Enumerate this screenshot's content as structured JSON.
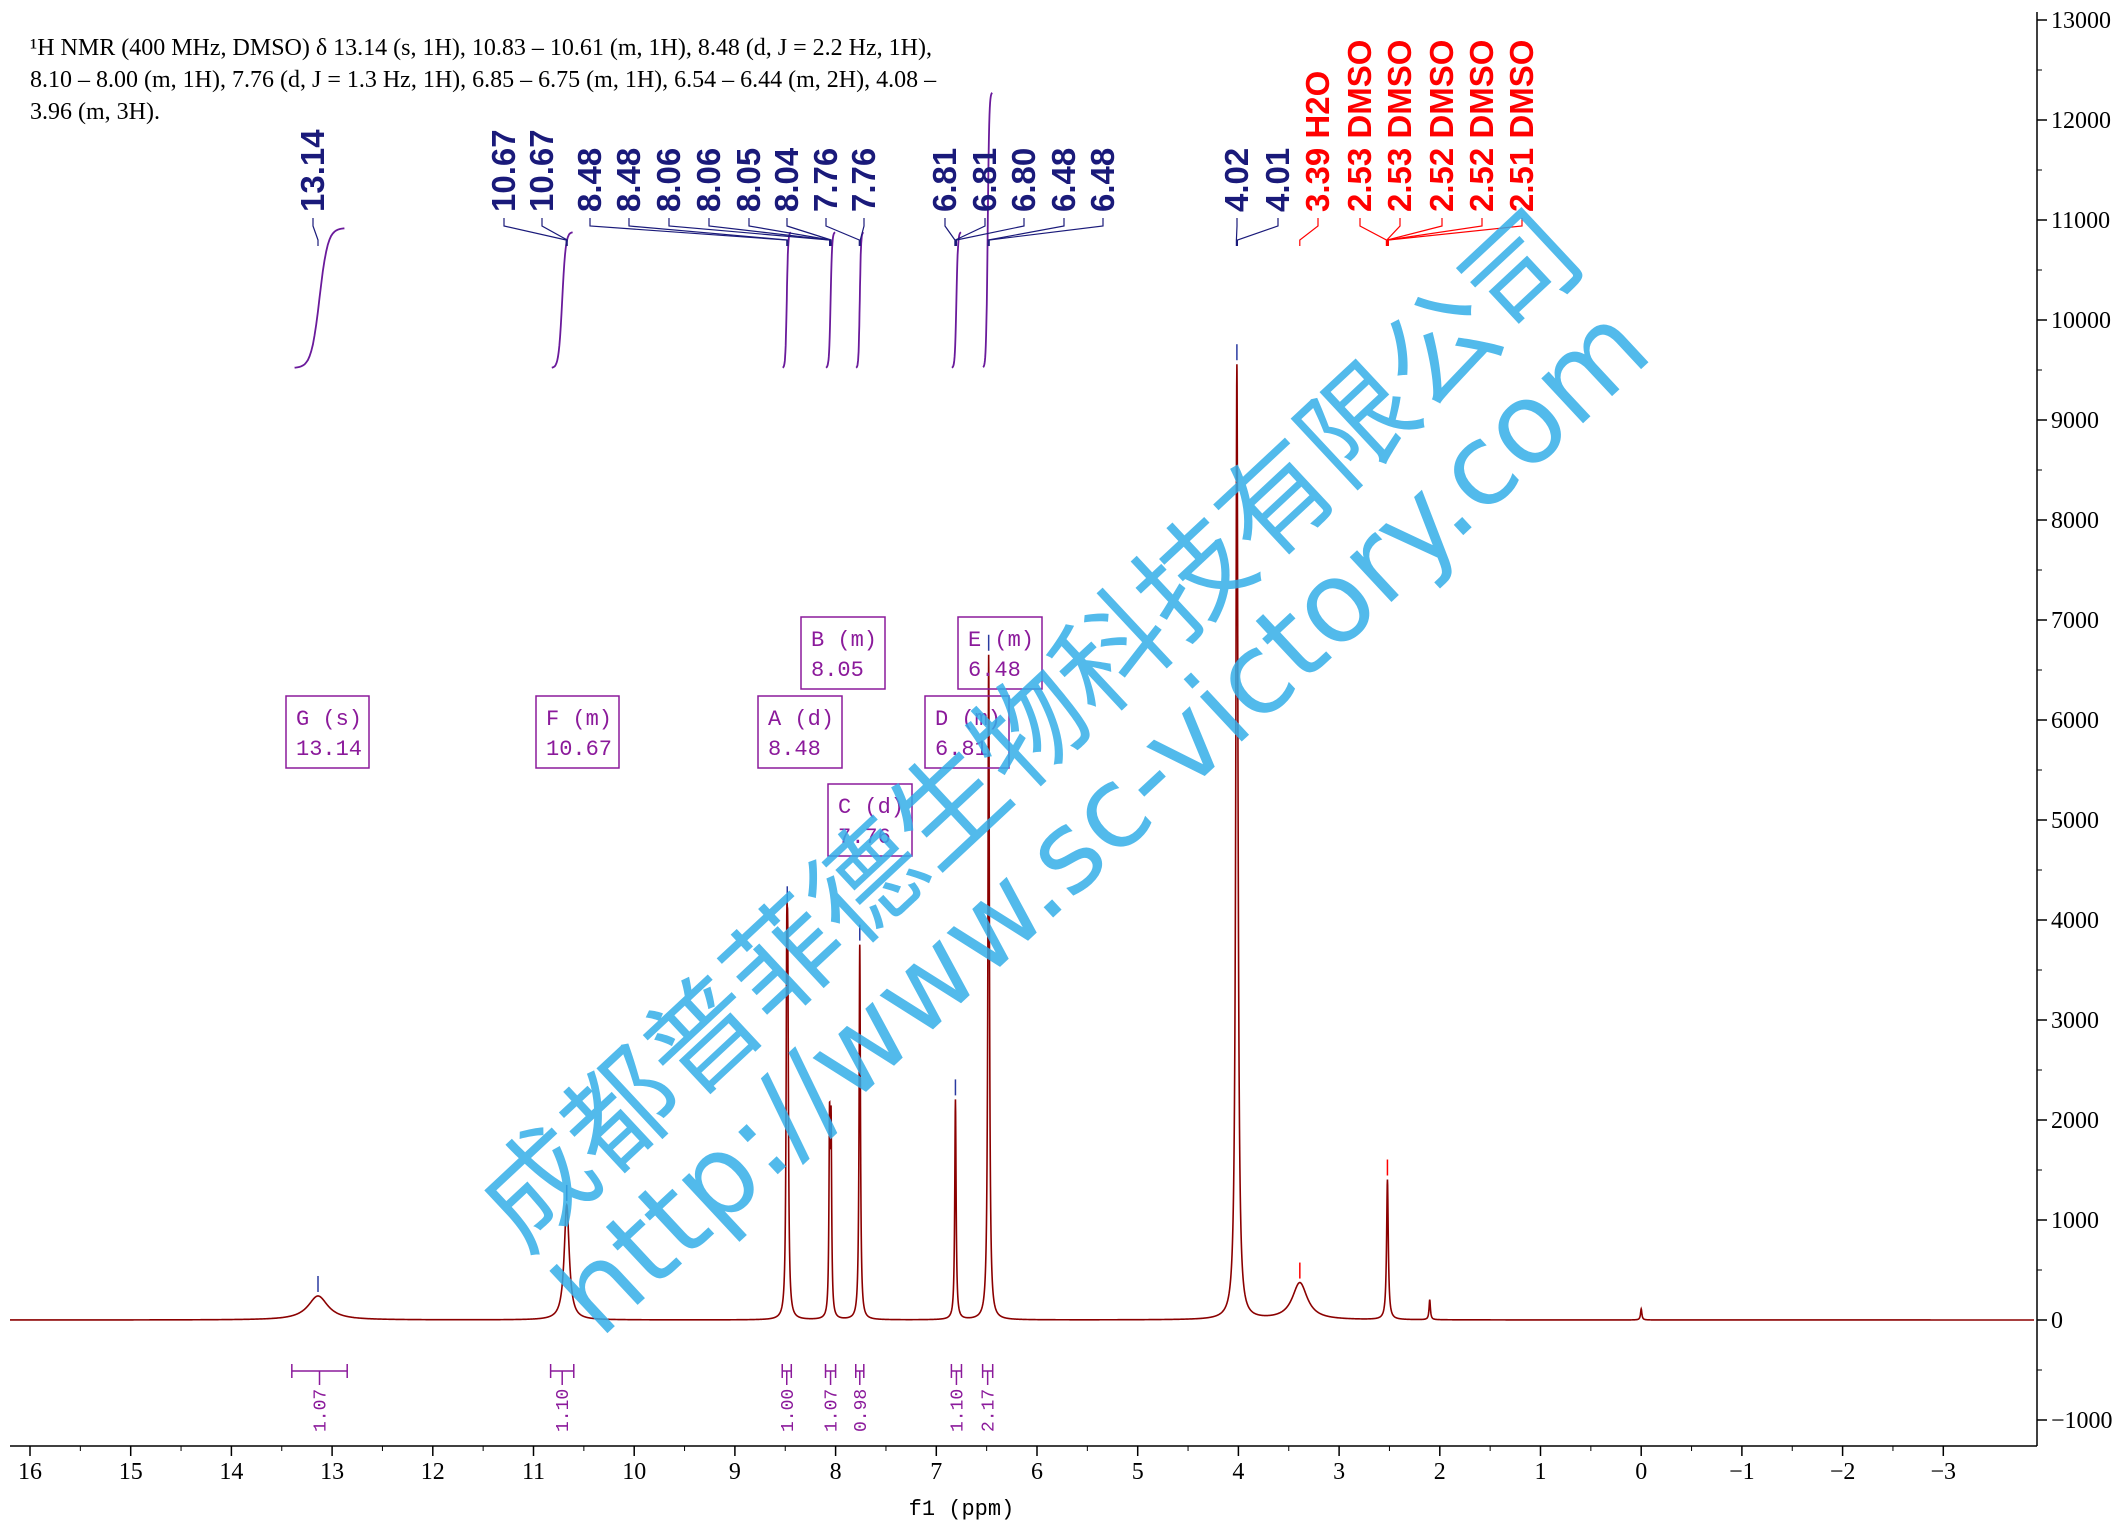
{
  "header": {
    "line1": "¹H NMR (400 MHz, DMSO) δ 13.14 (s, 1H), 10.83 – 10.61 (m, 1H), 8.48 (d, J = 2.2 Hz, 1H),",
    "line2": "8.10 – 8.00 (m, 1H), 7.76 (d, J = 1.3 Hz, 1H), 6.85 – 6.75 (m, 1H), 6.54 – 6.44 (m, 2H), 4.08 –",
    "line3": "3.96 (m, 3H)."
  },
  "watermark": {
    "company": "成都普菲德生物科技有限公司",
    "url": "http://www.sc-victory.com"
  },
  "colors": {
    "spectrum": "#8b0000",
    "peak_label": "#1a1a7a",
    "solvent_label": "#ff0000",
    "annotation": "#8b1a9b",
    "integral_curve": "#6a1a9b",
    "watermark": "#34aee8"
  },
  "chart_data": {
    "type": "line",
    "title": "",
    "xlabel": "f1 (ppm)",
    "ylabel": "",
    "xlim": [
      16.2,
      -3.8
    ],
    "ylim": [
      -1000,
      13000
    ],
    "x_reversed": true,
    "x_ticks": [
      16,
      15,
      14,
      13,
      12,
      11,
      10,
      9,
      8,
      7,
      6,
      5,
      4,
      3,
      2,
      1,
      0,
      -1,
      -2,
      -3
    ],
    "x_tick_labels": [
      "16",
      "15",
      "14",
      "13",
      "12",
      "11",
      "10",
      "9",
      "8",
      "7",
      "6",
      "5",
      "4",
      "3",
      "2",
      "1",
      "0",
      "−1",
      "−2",
      "−3"
    ],
    "y_ticks": [
      -1000,
      0,
      1000,
      2000,
      3000,
      4000,
      5000,
      6000,
      7000,
      8000,
      9000,
      10000,
      11000,
      12000,
      13000
    ],
    "y_tick_labels": [
      "−1000",
      "0",
      "1000",
      "2000",
      "3000",
      "4000",
      "5000",
      "6000",
      "7000",
      "8000",
      "9000",
      "10000",
      "11000",
      "12000",
      "13000"
    ],
    "y_axis_side": "right",
    "peaks": [
      {
        "ppm": 13.14,
        "height": 240,
        "width": 0.12
      },
      {
        "ppm": 10.67,
        "height": 1150,
        "width": 0.03
      },
      {
        "ppm": 8.485,
        "height": 2950,
        "width": 0.008
      },
      {
        "ppm": 8.475,
        "height": 2800,
        "width": 0.008
      },
      {
        "ppm": 8.06,
        "height": 1850,
        "width": 0.007
      },
      {
        "ppm": 8.045,
        "height": 1800,
        "width": 0.007
      },
      {
        "ppm": 7.76,
        "height": 3750,
        "width": 0.008
      },
      {
        "ppm": 6.81,
        "height": 2200,
        "width": 0.008
      },
      {
        "ppm": 6.48,
        "height": 6650,
        "width": 0.009
      },
      {
        "ppm": 4.015,
        "height": 9550,
        "width": 0.013
      },
      {
        "ppm": 3.39,
        "height": 370,
        "width": 0.09
      },
      {
        "ppm": 2.52,
        "height": 1400,
        "width": 0.01
      },
      {
        "ppm": 2.1,
        "height": 200,
        "width": 0.008
      },
      {
        "ppm": 0.0,
        "height": 110,
        "width": 0.008
      }
    ],
    "peak_labels": [
      {
        "text": "13.14",
        "color": "navy"
      },
      {
        "text": "10.67",
        "color": "navy"
      },
      {
        "text": "10.67",
        "color": "navy"
      },
      {
        "text": "8.48",
        "color": "navy"
      },
      {
        "text": "8.48",
        "color": "navy"
      },
      {
        "text": "8.06",
        "color": "navy"
      },
      {
        "text": "8.06",
        "color": "navy"
      },
      {
        "text": "8.05",
        "color": "navy"
      },
      {
        "text": "8.04",
        "color": "navy"
      },
      {
        "text": "7.76",
        "color": "navy"
      },
      {
        "text": "7.76",
        "color": "navy"
      },
      {
        "text": "6.81",
        "color": "navy"
      },
      {
        "text": "6.81",
        "color": "navy"
      },
      {
        "text": "6.80",
        "color": "navy"
      },
      {
        "text": "6.48",
        "color": "navy"
      },
      {
        "text": "6.48",
        "color": "navy"
      },
      {
        "text": "4.02",
        "color": "navy"
      },
      {
        "text": "4.01",
        "color": "navy"
      },
      {
        "text": "3.39 H2O",
        "color": "red"
      },
      {
        "text": "2.53 DMSO",
        "color": "red"
      },
      {
        "text": "2.53 DMSO",
        "color": "red"
      },
      {
        "text": "2.52 DMSO",
        "color": "red"
      },
      {
        "text": "2.52 DMSO",
        "color": "red"
      },
      {
        "text": "2.51 DMSO",
        "color": "red"
      }
    ],
    "multiplets": [
      {
        "letter": "G (s)",
        "shift": "13.14"
      },
      {
        "letter": "F (m)",
        "shift": "10.67"
      },
      {
        "letter": "A (d)",
        "shift": "8.48"
      },
      {
        "letter": "B (m)",
        "shift": "8.05"
      },
      {
        "letter": "C (d)",
        "shift": "7.76"
      },
      {
        "letter": "D (m)",
        "shift": "6.81"
      },
      {
        "letter": "E (m)",
        "shift": "6.48"
      }
    ],
    "integrals": [
      {
        "from": 13.4,
        "to": 12.85,
        "value": "1.07"
      },
      {
        "from": 10.83,
        "to": 10.6,
        "value": "1.10"
      },
      {
        "from": 8.53,
        "to": 8.44,
        "value": "1.00"
      },
      {
        "from": 8.1,
        "to": 8.0,
        "value": "1.07"
      },
      {
        "from": 7.8,
        "to": 7.72,
        "value": "0.98"
      },
      {
        "from": 6.85,
        "to": 6.75,
        "value": "1.10"
      },
      {
        "from": 6.54,
        "to": 6.44,
        "value": "2.17"
      }
    ]
  }
}
